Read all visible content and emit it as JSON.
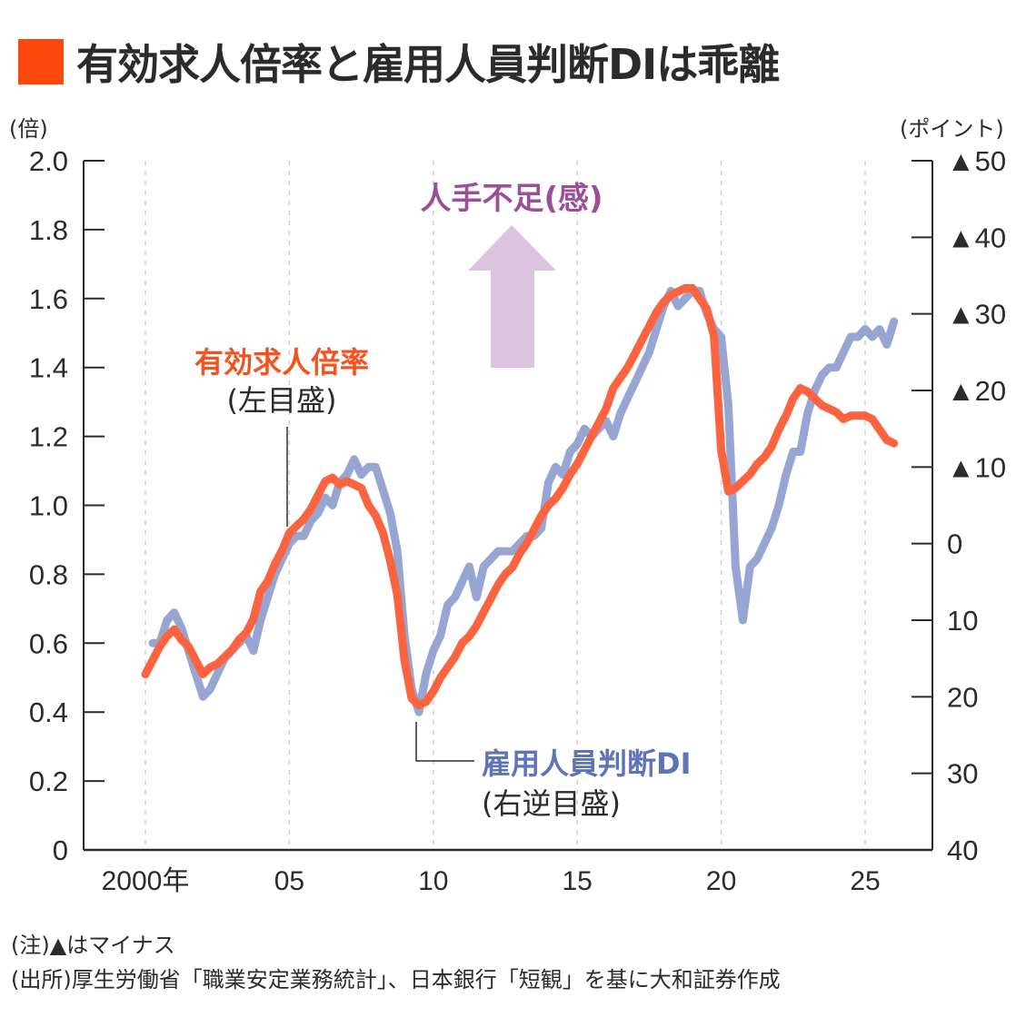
{
  "title": "有効求人倍率と雇用人員判断DIは乖離",
  "colors": {
    "title_mark": "#fc4a0f",
    "ratio_line": "#fc6440",
    "di_line": "#97a5d3",
    "ratio_label": "#f4521e",
    "di_label": "#5e74b8",
    "arrow": "#dcc3de",
    "arrow_label": "#9b4f96",
    "axis": "#2b2b2b",
    "grid": "#cfcfcf"
  },
  "annotations": {
    "arrow_label": "人手不足(感)",
    "ratio_label": "有効求人倍率",
    "ratio_sublabel": "(左目盛)",
    "di_label": "雇用人員判断DI",
    "di_sublabel": "(右逆目盛)"
  },
  "notes": {
    "note": "(注)▲はマイナス",
    "source": "(出所)厚生労働省「職業安定業務統計」、日本銀行「短観」を基に大和証券作成"
  },
  "chart_data": {
    "type": "line",
    "title": "有効求人倍率と雇用人員判断DIは乖離",
    "xlabel": "",
    "ylabel_left": "(倍)",
    "ylabel_right": "(ポイント)",
    "xlim": [
      2000,
      2026.5
    ],
    "ylim_left": [
      0,
      2.0
    ],
    "ylim_right": [
      40,
      -50
    ],
    "right_axis_inverted": true,
    "grid": "vertical-dashed",
    "x_ticks": [
      2000,
      2005,
      2010,
      2015,
      2020,
      2025
    ],
    "x_tick_labels": [
      "2000年",
      "05",
      "10",
      "15",
      "20",
      "25"
    ],
    "y_left_ticks": [
      0,
      0.2,
      0.4,
      0.6,
      0.8,
      1.0,
      1.2,
      1.4,
      1.6,
      1.8,
      2.0
    ],
    "y_left_tick_labels": [
      "0",
      "0.2",
      "0.4",
      "0.6",
      "0.8",
      "1.0",
      "1.2",
      "1.4",
      "1.6",
      "1.8",
      "2.0"
    ],
    "y_right_ticks": [
      -50,
      -40,
      -30,
      -20,
      -10,
      0,
      10,
      20,
      30,
      40
    ],
    "y_right_tick_labels": [
      "▲50",
      "▲40",
      "▲30",
      "▲20",
      "▲10",
      "0",
      "10",
      "20",
      "30",
      "40"
    ],
    "series": [
      {
        "name": "雇用人員判断DI",
        "axis": "right",
        "x": [
          2000.25,
          2000.5,
          2000.75,
          2001.0,
          2001.25,
          2001.5,
          2001.75,
          2002.0,
          2002.25,
          2002.5,
          2002.75,
          2003.0,
          2003.25,
          2003.5,
          2003.75,
          2004.0,
          2004.25,
          2004.5,
          2004.75,
          2005.0,
          2005.25,
          2005.5,
          2005.75,
          2006.0,
          2006.25,
          2006.5,
          2006.75,
          2007.0,
          2007.25,
          2007.5,
          2007.75,
          2008.0,
          2008.25,
          2008.5,
          2008.75,
          2009.0,
          2009.25,
          2009.5,
          2009.75,
          2010.0,
          2010.25,
          2010.5,
          2010.75,
          2011.0,
          2011.25,
          2011.5,
          2011.75,
          2012.0,
          2012.25,
          2012.5,
          2012.75,
          2013.0,
          2013.25,
          2013.5,
          2013.75,
          2014.0,
          2014.25,
          2014.5,
          2014.75,
          2015.0,
          2015.25,
          2015.5,
          2015.75,
          2016.0,
          2016.25,
          2016.5,
          2016.75,
          2017.0,
          2017.25,
          2017.5,
          2017.75,
          2018.0,
          2018.25,
          2018.5,
          2018.75,
          2019.0,
          2019.25,
          2019.5,
          2019.75,
          2020.0,
          2020.25,
          2020.5,
          2020.75,
          2021.0,
          2021.25,
          2021.5,
          2021.75,
          2022.0,
          2022.25,
          2022.5,
          2022.75,
          2023.0,
          2023.25,
          2023.5,
          2023.75,
          2024.0,
          2024.25,
          2024.5,
          2024.75,
          2025.0,
          2025.25,
          2025.5,
          2025.75,
          2026.0
        ],
        "values": [
          13,
          13,
          10,
          9,
          11,
          14,
          17,
          20,
          19,
          17,
          15,
          14,
          13,
          12,
          14,
          10,
          7,
          4,
          2,
          0,
          -1,
          -1,
          -3,
          -4,
          -6,
          -5,
          -8,
          -9,
          -11,
          -9,
          -10,
          -10,
          -7,
          -4,
          1,
          12,
          19,
          22,
          17,
          14,
          12,
          8,
          7,
          5,
          3,
          7,
          3,
          2,
          1,
          1,
          1,
          0,
          -1,
          -1,
          -2,
          -8,
          -10,
          -9,
          -12,
          -13,
          -15,
          -14,
          -15,
          -16,
          -14,
          -17,
          -19,
          -21,
          -23,
          -25,
          -28,
          -31,
          -33,
          -31,
          -32,
          -33,
          -33,
          -30,
          -28,
          -27,
          -18,
          3,
          10,
          3,
          2,
          0,
          -2,
          -5,
          -9,
          -12,
          -12,
          -17,
          -20,
          -22,
          -23,
          -23,
          -25,
          -27,
          -27,
          -28,
          -27,
          -28,
          -26,
          -29
        ]
      },
      {
        "name": "有効求人倍率",
        "axis": "left",
        "x": [
          2000.0,
          2000.25,
          2000.5,
          2000.75,
          2001.0,
          2001.25,
          2001.5,
          2001.75,
          2002.0,
          2002.25,
          2002.5,
          2002.75,
          2003.0,
          2003.25,
          2003.5,
          2003.75,
          2004.0,
          2004.25,
          2004.5,
          2004.75,
          2005.0,
          2005.25,
          2005.5,
          2005.75,
          2006.0,
          2006.25,
          2006.5,
          2006.75,
          2007.0,
          2007.25,
          2007.5,
          2007.75,
          2008.0,
          2008.25,
          2008.5,
          2008.75,
          2009.0,
          2009.25,
          2009.5,
          2009.75,
          2010.0,
          2010.25,
          2010.5,
          2010.75,
          2011.0,
          2011.25,
          2011.5,
          2011.75,
          2012.0,
          2012.25,
          2012.5,
          2012.75,
          2013.0,
          2013.25,
          2013.5,
          2013.75,
          2014.0,
          2014.25,
          2014.5,
          2014.75,
          2015.0,
          2015.25,
          2015.5,
          2015.75,
          2016.0,
          2016.25,
          2016.5,
          2016.75,
          2017.0,
          2017.25,
          2017.5,
          2017.75,
          2018.0,
          2018.25,
          2018.5,
          2018.75,
          2019.0,
          2019.25,
          2019.5,
          2019.75,
          2020.0,
          2020.25,
          2020.5,
          2020.75,
          2021.0,
          2021.25,
          2021.5,
          2021.75,
          2022.0,
          2022.25,
          2022.5,
          2022.75,
          2023.0,
          2023.25,
          2023.5,
          2023.75,
          2024.0,
          2024.25,
          2024.5,
          2024.75,
          2025.0,
          2025.25,
          2025.5,
          2025.75,
          2026.0
        ],
        "values": [
          0.51,
          0.55,
          0.59,
          0.62,
          0.64,
          0.61,
          0.59,
          0.55,
          0.51,
          0.53,
          0.54,
          0.56,
          0.58,
          0.61,
          0.63,
          0.67,
          0.75,
          0.78,
          0.83,
          0.87,
          0.92,
          0.94,
          0.96,
          0.99,
          1.03,
          1.07,
          1.08,
          1.06,
          1.07,
          1.06,
          1.05,
          1.0,
          0.97,
          0.92,
          0.84,
          0.74,
          0.55,
          0.44,
          0.42,
          0.43,
          0.46,
          0.5,
          0.53,
          0.56,
          0.6,
          0.62,
          0.65,
          0.69,
          0.73,
          0.77,
          0.8,
          0.82,
          0.86,
          0.89,
          0.93,
          0.97,
          1.0,
          1.02,
          1.05,
          1.09,
          1.12,
          1.16,
          1.2,
          1.24,
          1.28,
          1.34,
          1.37,
          1.4,
          1.44,
          1.48,
          1.52,
          1.56,
          1.59,
          1.61,
          1.62,
          1.63,
          1.63,
          1.6,
          1.57,
          1.49,
          1.16,
          1.04,
          1.05,
          1.07,
          1.09,
          1.12,
          1.14,
          1.17,
          1.22,
          1.26,
          1.31,
          1.34,
          1.33,
          1.31,
          1.29,
          1.28,
          1.27,
          1.25,
          1.26,
          1.26,
          1.26,
          1.25,
          1.22,
          1.19,
          1.18
        ]
      }
    ],
    "legend": "inline-labels"
  }
}
